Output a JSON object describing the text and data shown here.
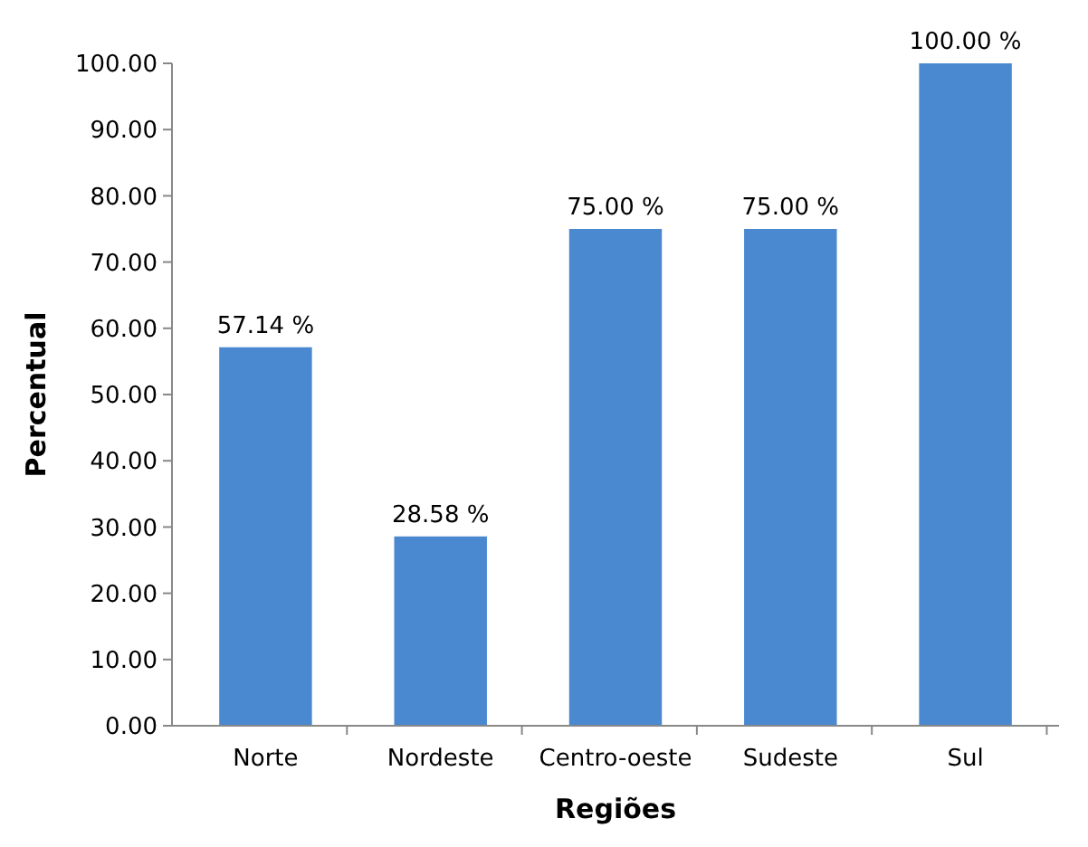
{
  "chart_data": {
    "type": "bar",
    "xlabel": "Regiões",
    "ylabel": "Percentual",
    "categories": [
      "Norte",
      "Nordeste",
      "Centro-oeste",
      "Sudeste",
      "Sul"
    ],
    "values": [
      57.14,
      28.58,
      75,
      75,
      100
    ],
    "value_labels": [
      "57.14 %",
      "28.58 %",
      "75.00 %",
      "75.00 %",
      "100.00 %"
    ],
    "color": "#4a88d0",
    "ylim": [
      0,
      100
    ],
    "yticks": [
      {
        "value": 0,
        "label": "0.00"
      },
      {
        "value": 10,
        "label": "10.00"
      },
      {
        "value": 20,
        "label": "20.00"
      },
      {
        "value": 30,
        "label": "30.00"
      },
      {
        "value": 40,
        "label": "40.00"
      },
      {
        "value": 50,
        "label": "50.00"
      },
      {
        "value": 60,
        "label": "60.00"
      },
      {
        "value": 70,
        "label": "70.00"
      },
      {
        "value": 80,
        "label": "80.00"
      },
      {
        "value": 90,
        "label": "90.00"
      },
      {
        "value": 100,
        "label": "100.00"
      }
    ],
    "grid": false
  }
}
